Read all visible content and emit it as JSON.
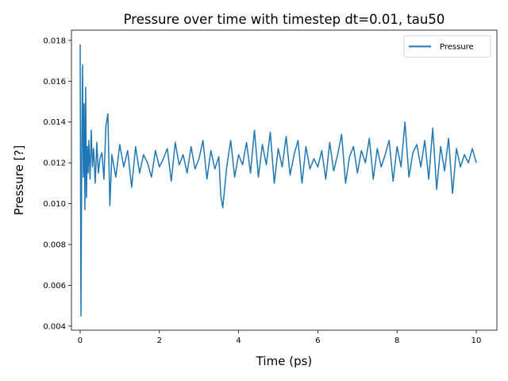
{
  "chart_data": {
    "type": "line",
    "title": "Pressure over time with timestep dt=0.01, tau50",
    "xlabel": "Time (ps)",
    "ylabel": "Pressure [?]",
    "xlim": [
      -0.22,
      10.52
    ],
    "ylim": [
      0.0038,
      0.0185
    ],
    "xticks": [
      0,
      2,
      4,
      6,
      8,
      10
    ],
    "xtick_labels": [
      "0",
      "2",
      "4",
      "6",
      "8",
      "10"
    ],
    "yticks": [
      0.004,
      0.006,
      0.008,
      0.01,
      0.012,
      0.014,
      0.016,
      0.018
    ],
    "ytick_labels": [
      "0.004",
      "0.006",
      "0.008",
      "0.010",
      "0.012",
      "0.014",
      "0.016",
      "0.018"
    ],
    "grid": false,
    "legend_position": "top-right",
    "series": [
      {
        "name": "Pressure",
        "color": "#1f77b4",
        "x": [
          0.0,
          0.02,
          0.04,
          0.06,
          0.08,
          0.1,
          0.12,
          0.14,
          0.16,
          0.18,
          0.2,
          0.22,
          0.25,
          0.28,
          0.31,
          0.34,
          0.38,
          0.42,
          0.46,
          0.5,
          0.55,
          0.6,
          0.65,
          0.7,
          0.75,
          0.8,
          0.9,
          1.0,
          1.1,
          1.2,
          1.3,
          1.4,
          1.5,
          1.6,
          1.7,
          1.8,
          1.9,
          2.0,
          2.1,
          2.2,
          2.3,
          2.4,
          2.5,
          2.6,
          2.7,
          2.8,
          2.9,
          3.0,
          3.1,
          3.2,
          3.3,
          3.4,
          3.5,
          3.55,
          3.6,
          3.7,
          3.8,
          3.9,
          4.0,
          4.1,
          4.2,
          4.3,
          4.4,
          4.5,
          4.6,
          4.7,
          4.8,
          4.9,
          5.0,
          5.1,
          5.2,
          5.3,
          5.4,
          5.5,
          5.6,
          5.7,
          5.8,
          5.9,
          6.0,
          6.1,
          6.2,
          6.3,
          6.4,
          6.5,
          6.6,
          6.7,
          6.8,
          6.9,
          7.0,
          7.1,
          7.2,
          7.3,
          7.4,
          7.5,
          7.6,
          7.7,
          7.8,
          7.9,
          8.0,
          8.1,
          8.2,
          8.3,
          8.4,
          8.5,
          8.6,
          8.7,
          8.8,
          8.9,
          9.0,
          9.1,
          9.2,
          9.3,
          9.4,
          9.5,
          9.6,
          9.7,
          9.8,
          9.9,
          10.0
        ],
        "values": [
          0.0178,
          0.0045,
          0.0125,
          0.0168,
          0.0113,
          0.0149,
          0.0097,
          0.0157,
          0.0103,
          0.0128,
          0.0115,
          0.0131,
          0.0112,
          0.0136,
          0.0118,
          0.0127,
          0.011,
          0.013,
          0.0115,
          0.0122,
          0.0125,
          0.0112,
          0.0138,
          0.0144,
          0.0099,
          0.0124,
          0.0113,
          0.0129,
          0.0118,
          0.0126,
          0.0108,
          0.0128,
          0.0115,
          0.0124,
          0.012,
          0.0113,
          0.0126,
          0.0118,
          0.0122,
          0.0127,
          0.0111,
          0.013,
          0.0119,
          0.0124,
          0.0115,
          0.0128,
          0.0117,
          0.0122,
          0.0131,
          0.0112,
          0.0126,
          0.0117,
          0.0123,
          0.0104,
          0.0098,
          0.0118,
          0.0131,
          0.0113,
          0.0124,
          0.0119,
          0.013,
          0.0115,
          0.0136,
          0.0113,
          0.0129,
          0.0119,
          0.0135,
          0.011,
          0.0127,
          0.0118,
          0.0133,
          0.0114,
          0.0124,
          0.0131,
          0.011,
          0.0128,
          0.0117,
          0.0122,
          0.0118,
          0.0126,
          0.0112,
          0.013,
          0.0116,
          0.0124,
          0.0134,
          0.011,
          0.0123,
          0.0128,
          0.0115,
          0.0126,
          0.012,
          0.0132,
          0.0112,
          0.0127,
          0.0118,
          0.0124,
          0.0131,
          0.0111,
          0.0128,
          0.0118,
          0.014,
          0.0113,
          0.0125,
          0.0129,
          0.0118,
          0.0131,
          0.0112,
          0.0137,
          0.0107,
          0.0128,
          0.0116,
          0.0132,
          0.0105,
          0.0127,
          0.0118,
          0.0124,
          0.012,
          0.0127,
          0.012
        ]
      }
    ]
  }
}
